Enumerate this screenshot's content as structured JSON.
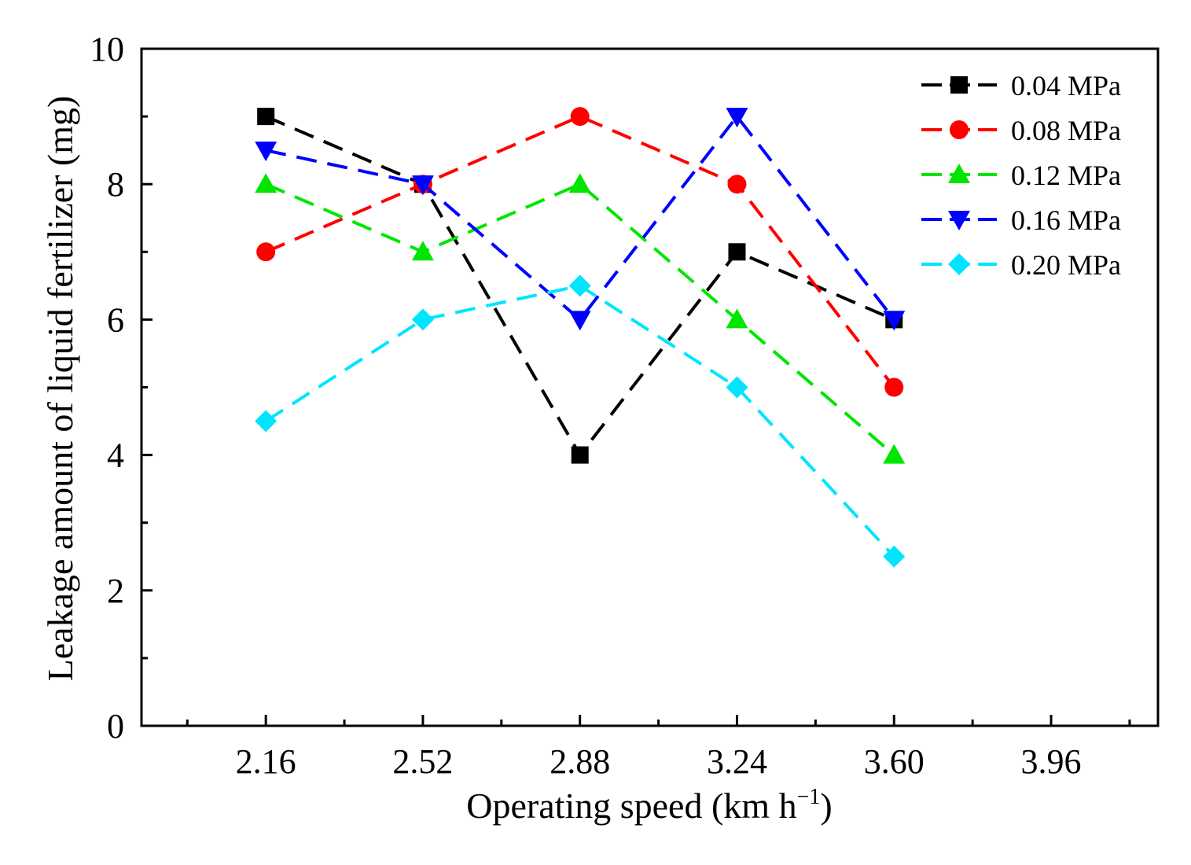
{
  "chart_data": {
    "type": "line",
    "title": "",
    "xlabel": "Operating speed (km h",
    "xlabel_superscript": "−1",
    "xlabel_close": ")",
    "ylabel": "Leakage amount of liquid fertilizer (mg)",
    "x_ticks": [
      "2.16",
      "2.52",
      "2.88",
      "3.24",
      "3.60",
      "3.96"
    ],
    "x_tick_values": [
      2.16,
      2.52,
      2.88,
      3.24,
      3.6,
      3.96
    ],
    "xlim": [
      1.875,
      4.205
    ],
    "ylim": [
      0,
      10
    ],
    "y_ticks": [
      "0",
      "2",
      "4",
      "6",
      "8",
      "10"
    ],
    "y_tick_values": [
      0,
      2,
      4,
      6,
      8,
      10
    ],
    "x": [
      2.16,
      2.52,
      2.88,
      3.24,
      3.6
    ],
    "legend_position": "top-right",
    "grid": false,
    "series": [
      {
        "name": "0.04 MPa",
        "values": [
          9,
          8,
          4,
          7,
          6
        ],
        "color": "#000000",
        "marker": "square"
      },
      {
        "name": "0.08 MPa",
        "values": [
          7,
          8,
          9,
          8,
          5
        ],
        "color": "#ff0000",
        "marker": "circle"
      },
      {
        "name": "0.12 MPa",
        "values": [
          8,
          7,
          8,
          6,
          4
        ],
        "color": "#00e600",
        "marker": "triangle-up"
      },
      {
        "name": "0.16 MPa",
        "values": [
          8.5,
          8,
          6,
          9,
          6
        ],
        "color": "#0000ff",
        "marker": "triangle-down"
      },
      {
        "name": "0.20 MPa",
        "values": [
          4.5,
          6,
          6.5,
          5,
          2.5
        ],
        "color": "#00e5ff",
        "marker": "diamond"
      }
    ]
  }
}
